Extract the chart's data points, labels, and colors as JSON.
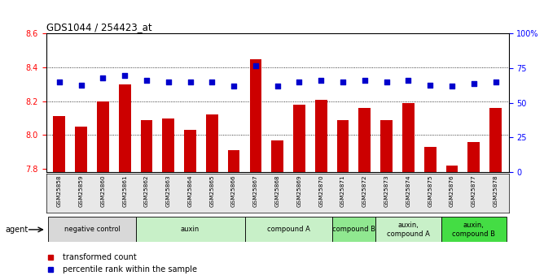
{
  "title": "GDS1044 / 254423_at",
  "samples": [
    "GSM25858",
    "GSM25859",
    "GSM25860",
    "GSM25861",
    "GSM25862",
    "GSM25863",
    "GSM25864",
    "GSM25865",
    "GSM25866",
    "GSM25867",
    "GSM25868",
    "GSM25869",
    "GSM25870",
    "GSM25871",
    "GSM25872",
    "GSM25873",
    "GSM25874",
    "GSM25875",
    "GSM25876",
    "GSM25877",
    "GSM25878"
  ],
  "bar_values": [
    8.11,
    8.05,
    8.2,
    8.3,
    8.09,
    8.1,
    8.03,
    8.12,
    7.91,
    8.45,
    7.97,
    8.18,
    8.21,
    8.09,
    8.16,
    8.09,
    8.19,
    7.93,
    7.82,
    7.96,
    8.16
  ],
  "dot_values": [
    65,
    63,
    68,
    70,
    66,
    65,
    65,
    65,
    62,
    77,
    62,
    65,
    66,
    65,
    66,
    65,
    66,
    63,
    62,
    64,
    65
  ],
  "bar_color": "#cc0000",
  "dot_color": "#0000cc",
  "plot_bg": "#ffffff",
  "ylim_left": [
    7.78,
    8.6
  ],
  "ylim_right": [
    0,
    100
  ],
  "yticks_left": [
    7.8,
    8.0,
    8.2,
    8.4,
    8.6
  ],
  "yticks_right": [
    0,
    25,
    50,
    75,
    100
  ],
  "ytick_labels_right": [
    "0",
    "25",
    "50",
    "75",
    "100%"
  ],
  "groups": [
    {
      "label": "negative control",
      "start": 0,
      "end": 3,
      "color": "#d8d8d8"
    },
    {
      "label": "auxin",
      "start": 4,
      "end": 8,
      "color": "#c8f0c8"
    },
    {
      "label": "compound A",
      "start": 9,
      "end": 12,
      "color": "#c8f0c8"
    },
    {
      "label": "compound B",
      "start": 13,
      "end": 14,
      "color": "#90e890"
    },
    {
      "label": "auxin,\ncompound A",
      "start": 15,
      "end": 17,
      "color": "#c8f0c8"
    },
    {
      "label": "auxin,\ncompound B",
      "start": 18,
      "end": 20,
      "color": "#44dd44"
    }
  ],
  "legend_items": [
    {
      "label": "transformed count",
      "color": "#cc0000"
    },
    {
      "label": "percentile rank within the sample",
      "color": "#0000cc"
    }
  ],
  "agent_label": "agent",
  "bar_width": 0.55
}
